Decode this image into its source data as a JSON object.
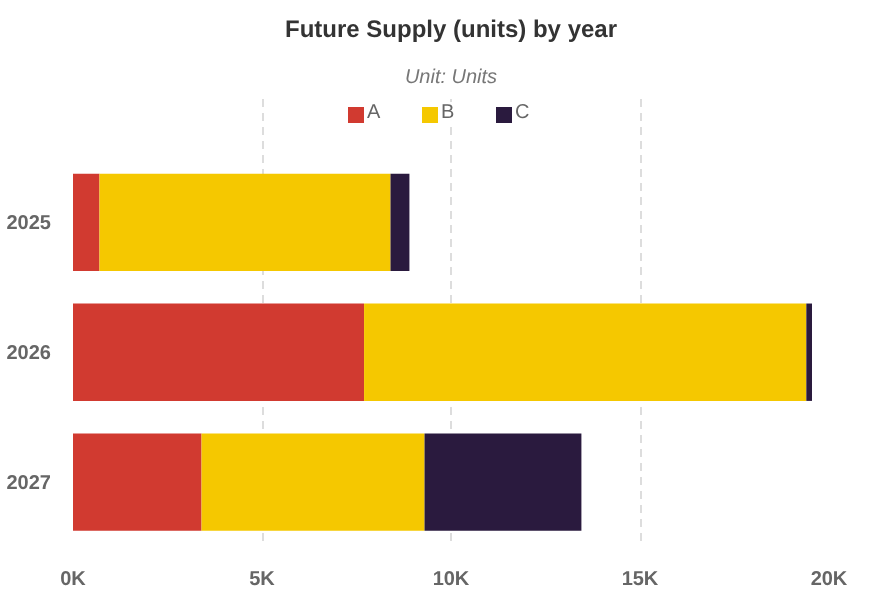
{
  "chart_data": {
    "type": "bar",
    "orientation": "horizontal",
    "stacked": true,
    "title": "Future Supply (units) by year",
    "subtitle": "Unit: Units",
    "categories": [
      "2025",
      "2026",
      "2027"
    ],
    "series": [
      {
        "name": "A",
        "color": "#d13a30",
        "values": [
          700,
          7700,
          3400
        ]
      },
      {
        "name": "B",
        "color": "#f5c800",
        "values": [
          7700,
          11700,
          5900
        ]
      },
      {
        "name": "C",
        "color": "#2a1a3e",
        "values": [
          500,
          150,
          4150
        ]
      }
    ],
    "xlim": [
      0,
      20000
    ],
    "xticks": [
      {
        "value": 0,
        "label": "0K"
      },
      {
        "value": 5000,
        "label": "5K"
      },
      {
        "value": 10000,
        "label": "10K"
      },
      {
        "value": 15000,
        "label": "15K"
      },
      {
        "value": 20000,
        "label": "20K"
      }
    ],
    "grid": "x",
    "legend": "top"
  }
}
